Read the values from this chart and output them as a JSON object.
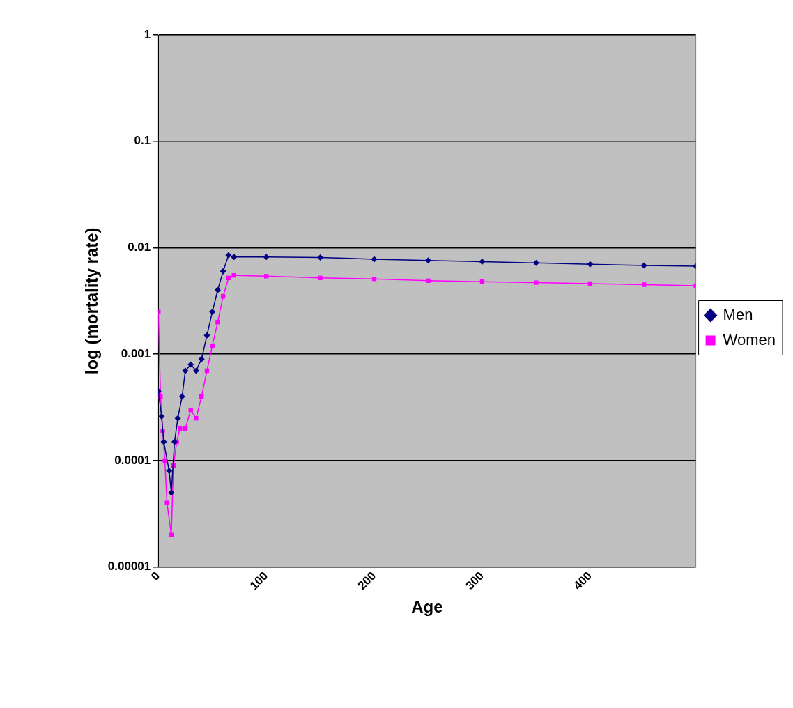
{
  "chart_data": {
    "type": "line",
    "xlabel": "Age",
    "ylabel": "log (mortality rate)",
    "log": "y",
    "grid": "y",
    "legend": "right",
    "xlim": [
      0,
      498
    ],
    "xticks": [
      0,
      100,
      200,
      300,
      400
    ],
    "ylim": [
      1e-05,
      1
    ],
    "yticks": [
      {
        "value": 1e-05,
        "label": "0.00001"
      },
      0.0001,
      0.001,
      0.01,
      0.1,
      1
    ],
    "series": [
      {
        "name": "Men",
        "color": "#000080",
        "marker": "diamond",
        "x": [
          0,
          3,
          5,
          10,
          12,
          15,
          18,
          22,
          25,
          30,
          35,
          40,
          45,
          50,
          55,
          60,
          65,
          70,
          100,
          150,
          200,
          250,
          300,
          350,
          400,
          450,
          498
        ],
        "values": [
          0.00045,
          0.00026,
          0.00015,
          8e-05,
          5e-05,
          0.00015,
          0.00025,
          0.0004,
          0.0007,
          0.0008,
          0.0007,
          0.0009,
          0.0015,
          0.0025,
          0.004,
          0.006,
          0.0085,
          0.0082,
          0.0082,
          0.0081,
          0.0078,
          0.0076,
          0.0074,
          0.0072,
          0.007,
          0.0068,
          0.0067
        ]
      },
      {
        "name": "Women",
        "color": "#ff00ff",
        "marker": "square",
        "x": [
          0,
          2,
          4,
          6,
          8,
          12,
          14,
          17,
          20,
          25,
          30,
          35,
          40,
          45,
          50,
          55,
          60,
          65,
          70,
          100,
          150,
          200,
          250,
          300,
          350,
          400,
          450,
          498
        ],
        "values": [
          0.0025,
          0.0004,
          0.00019,
          0.0001,
          4e-05,
          2e-05,
          9e-05,
          0.00015,
          0.0002,
          0.0002,
          0.0003,
          0.00025,
          0.0004,
          0.0007,
          0.0012,
          0.002,
          0.0035,
          0.0052,
          0.0055,
          0.0054,
          0.0052,
          0.0051,
          0.0049,
          0.0048,
          0.0047,
          0.0046,
          0.0045,
          0.0044
        ]
      }
    ]
  }
}
